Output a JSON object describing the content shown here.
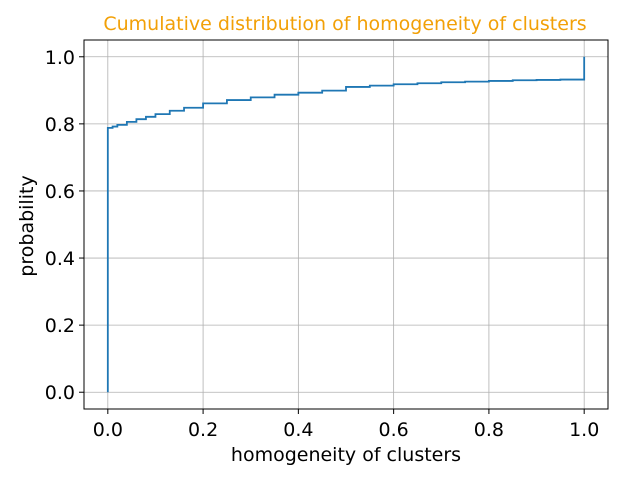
{
  "chart_data": {
    "type": "line",
    "title": "Cumulative distribution of homogeneity of clusters",
    "title_color": "#f2a007",
    "xlabel": "homogeneity of clusters",
    "ylabel": "probability",
    "xlim": [
      -0.05,
      1.05
    ],
    "ylim": [
      -0.05,
      1.05
    ],
    "xticks": [
      0.0,
      0.2,
      0.4,
      0.6,
      0.8,
      1.0
    ],
    "xtick_labels": [
      "0.0",
      "0.2",
      "0.4",
      "0.6",
      "0.8",
      "1.0"
    ],
    "yticks": [
      0.0,
      0.2,
      0.4,
      0.6,
      0.8,
      1.0
    ],
    "ytick_labels": [
      "0.0",
      "0.2",
      "0.4",
      "0.6",
      "0.8",
      "1.0"
    ],
    "grid": true,
    "line_color": "#1f77b4",
    "series": [
      {
        "x": [
          0.0,
          0.0,
          0.0,
          0.01,
          0.02,
          0.04,
          0.06,
          0.08,
          0.1,
          0.13,
          0.16,
          0.2,
          0.25,
          0.3,
          0.35,
          0.4,
          0.45,
          0.5,
          0.5,
          0.55,
          0.6,
          0.65,
          0.7,
          0.75,
          0.8,
          0.85,
          0.9,
          0.95,
          1.0,
          1.0
        ],
        "y": [
          0.0,
          0.787,
          0.788,
          0.792,
          0.797,
          0.806,
          0.814,
          0.821,
          0.829,
          0.839,
          0.848,
          0.861,
          0.871,
          0.879,
          0.887,
          0.893,
          0.899,
          0.902,
          0.91,
          0.914,
          0.918,
          0.921,
          0.924,
          0.926,
          0.928,
          0.93,
          0.931,
          0.932,
          0.933,
          1.0
        ]
      }
    ]
  }
}
